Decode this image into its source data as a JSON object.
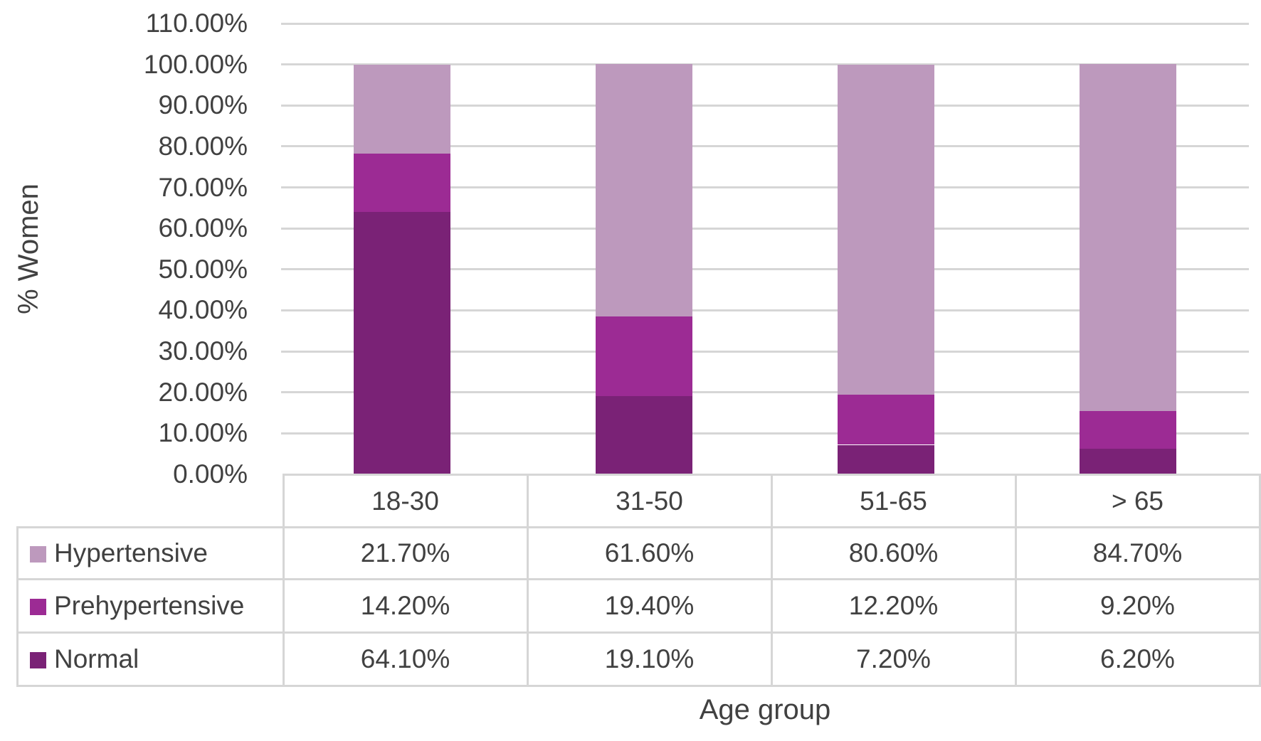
{
  "chart_data": {
    "type": "bar",
    "subtype": "stacked-100-percent",
    "title": "",
    "xlabel": "Age group",
    "ylabel": "% Women",
    "categories": [
      "18-30",
      "31-50",
      "51-65",
      "> 65"
    ],
    "series": [
      {
        "name": "Hypertensive",
        "color": "#bd99bd",
        "values": [
          21.7,
          61.6,
          80.6,
          84.7
        ],
        "labels": [
          "21.70%",
          "61.60%",
          "80.60%",
          "84.70%"
        ]
      },
      {
        "name": "Prehypertensive",
        "color": "#9c2b94",
        "values": [
          14.2,
          19.4,
          12.2,
          9.2
        ],
        "labels": [
          "14.20%",
          "19.40%",
          "12.20%",
          "9.20%"
        ]
      },
      {
        "name": "Normal",
        "color": "#7a2276",
        "values": [
          64.1,
          19.1,
          7.2,
          6.2
        ],
        "labels": [
          "64.10%",
          "19.10%",
          "7.20%",
          "6.20%"
        ]
      }
    ],
    "stack_order_bottom_to_top": [
      "Normal",
      "Prehypertensive",
      "Hypertensive"
    ],
    "y_axis": {
      "min": 0,
      "max": 110,
      "step": 10,
      "tick_labels_top_to_bottom": [
        "110.00%",
        "100.00%",
        "90.00%",
        "80.00%",
        "70.00%",
        "60.00%",
        "50.00%",
        "40.00%",
        "30.00%",
        "20.00%",
        "10.00%",
        "0.00%"
      ]
    },
    "grid": true,
    "legend_position": "data-table-left",
    "colors": {
      "gridline": "#d6d6d6",
      "table_border": "#d6d6d6",
      "text": "#414141",
      "background": "#ffffff"
    }
  }
}
